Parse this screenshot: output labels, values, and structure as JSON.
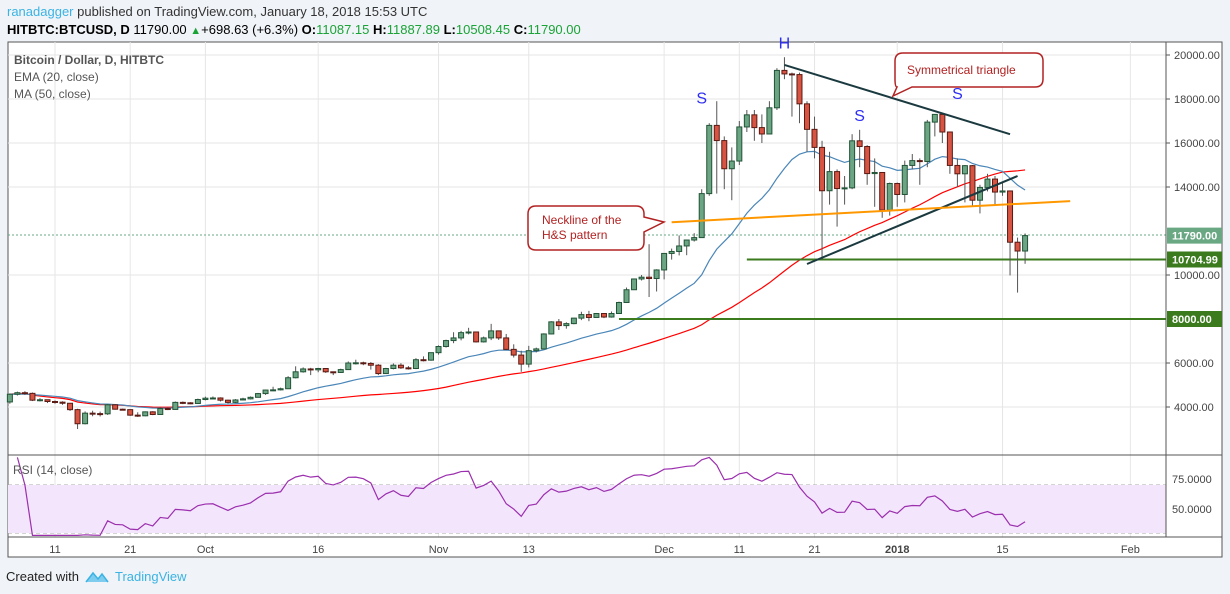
{
  "header": {
    "author": "ranadagger",
    "published_text": "published on TradingView.com, January 18, 2018 15:53 UTC",
    "symbol": "HITBTC:BTCUSD, D",
    "last": "11790.00",
    "change": "+698.63 (+6.3%)",
    "open_label": "O:",
    "open": "11087.15",
    "high_label": "H:",
    "high": "11887.89",
    "low_label": "L:",
    "low": "10508.45",
    "close_label": "C:",
    "close": "11790.00",
    "up_color": "#1aa337"
  },
  "legend": {
    "title": "Bitcoin / Dollar, D, HITBTC",
    "ema": "EMA (20, close)",
    "ma": "MA (50, close)"
  },
  "rsi": {
    "label": "RSI (14, close)",
    "ticks": [
      "75.0000",
      "50.0000"
    ],
    "band": [
      30,
      70
    ]
  },
  "footer": {
    "created_with": "Created with",
    "brand": "TradingView"
  },
  "chart_data": {
    "type": "candlestick",
    "interval": "D",
    "start_date": "2017-09-05",
    "first_open": 4230,
    "close": [
      4580,
      4650,
      4620,
      4310,
      4330,
      4250,
      4220,
      4170,
      3880,
      3240,
      3720,
      3700,
      3690,
      4100,
      3900,
      3880,
      3630,
      3600,
      3780,
      3660,
      3930,
      3890,
      4210,
      4190,
      4160,
      4340,
      4400,
      4410,
      4310,
      4210,
      4320,
      4370,
      4440,
      4610,
      4770,
      4780,
      4830,
      5330,
      5600,
      5730,
      5690,
      5750,
      5600,
      5570,
      5700,
      6000,
      6010,
      5980,
      5900,
      5520,
      5750,
      5900,
      5780,
      5750,
      6150,
      6130,
      6470,
      6750,
      7020,
      7140,
      7380,
      7410,
      6960,
      7140,
      7460,
      7140,
      6620,
      6360,
      5950,
      6560,
      6640,
      7320,
      7870,
      7700,
      7790,
      8040,
      8200,
      8070,
      8250,
      8090,
      8250,
      8750,
      9330,
      9820,
      9900,
      9840,
      10230,
      10980,
      11070,
      11320,
      11590,
      11700,
      13700,
      16800,
      16110,
      14830,
      15180,
      16730,
      17280,
      16700,
      16410,
      17600,
      19300,
      19140,
      19110,
      17780,
      16620,
      15800,
      13830,
      14700,
      13930,
      13960,
      16100,
      15840,
      14610,
      14660,
      12950,
      14160,
      13660,
      14980,
      15200,
      15160,
      16950,
      17300,
      16500,
      14980,
      14600,
      14970,
      13400,
      13980,
      14360,
      13770,
      13820,
      11490,
      11090,
      11790
    ],
    "high": [
      4620,
      4700,
      4720,
      4660,
      4400,
      4340,
      4300,
      4260,
      4180,
      3920,
      3800,
      3830,
      3790,
      4130,
      4130,
      3930,
      3890,
      3760,
      3800,
      3810,
      3980,
      3970,
      4250,
      4250,
      4220,
      4380,
      4470,
      4480,
      4440,
      4330,
      4360,
      4420,
      4480,
      4640,
      4790,
      4920,
      4880,
      5400,
      5850,
      5800,
      5780,
      5780,
      5770,
      5610,
      5740,
      6070,
      6150,
      6060,
      6040,
      5950,
      5780,
      5980,
      5990,
      5860,
      6220,
      6300,
      6470,
      6800,
      7060,
      7400,
      7460,
      7600,
      7430,
      7200,
      7780,
      7450,
      7320,
      6850,
      6560,
      6780,
      6700,
      7350,
      7900,
      8000,
      7850,
      8050,
      8330,
      8370,
      8260,
      8270,
      8340,
      8790,
      9430,
      9820,
      10000,
      11400,
      10260,
      10980,
      11200,
      11800,
      11600,
      11900,
      13900,
      16900,
      17900,
      16300,
      15800,
      17000,
      17500,
      17500,
      17300,
      17900,
      19400,
      19900,
      19200,
      19200,
      17900,
      17200,
      16100,
      15600,
      14800,
      14500,
      16400,
      16600,
      15900,
      15300,
      14680,
      14200,
      14200,
      15200,
      15500,
      15300,
      17050,
      17300,
      17200,
      16500,
      15300,
      15000,
      15000,
      14100,
      14600,
      14500,
      14200,
      13800,
      11700,
      11887.89
    ],
    "low": [
      4150,
      4520,
      4550,
      4270,
      4250,
      4180,
      4150,
      4100,
      3820,
      3000,
      3210,
      3580,
      3570,
      3640,
      3880,
      3850,
      3600,
      3550,
      3580,
      3630,
      3660,
      3860,
      3880,
      4130,
      4130,
      4150,
      4300,
      4370,
      4250,
      4160,
      4180,
      4300,
      4340,
      4440,
      4550,
      4720,
      4750,
      4830,
      5300,
      5560,
      5450,
      5580,
      5550,
      5450,
      5550,
      5700,
      5930,
      5900,
      5700,
      5450,
      5520,
      5710,
      5730,
      5700,
      5720,
      6070,
      6100,
      6380,
      6700,
      6900,
      7030,
      7300,
      6930,
      6930,
      7040,
      7050,
      6580,
      6250,
      5600,
      5800,
      6480,
      6630,
      7300,
      7500,
      7560,
      7760,
      7950,
      7900,
      8070,
      8040,
      8060,
      8250,
      8730,
      9320,
      9750,
      9000,
      9250,
      9800,
      10700,
      10890,
      10900,
      11520,
      11700,
      13600,
      13700,
      13900,
      13400,
      15000,
      16500,
      16100,
      16000,
      16400,
      17500,
      18900,
      17200,
      16900,
      15600,
      15300,
      10700,
      13200,
      12200,
      13200,
      13900,
      14900,
      14100,
      13100,
      12600,
      12700,
      13100,
      13300,
      14800,
      14100,
      14900,
      16300,
      16000,
      14600,
      14000,
      13300,
      13100,
      12800,
      13800,
      13200,
      13600,
      9980,
      9200,
      10508.45
    ],
    "indicators": [
      {
        "name": "EMA (20, close)",
        "color": "#4a86b8"
      },
      {
        "name": "MA (50, close)",
        "color": "#ff0000"
      }
    ],
    "price_ticks": [
      "20000.00",
      "18000.00",
      "16000.00",
      "14000.00",
      "10000.00",
      "6000.00",
      "4000.00"
    ],
    "ylim": [
      2300,
      20600
    ],
    "time_ticks": [
      {
        "label": "11",
        "date": "2017-09-11"
      },
      {
        "label": "21",
        "date": "2017-09-21"
      },
      {
        "label": "Oct",
        "date": "2017-10-01"
      },
      {
        "label": "16",
        "date": "2017-10-16"
      },
      {
        "label": "Nov",
        "date": "2017-11-01"
      },
      {
        "label": "13",
        "date": "2017-11-13"
      },
      {
        "label": "Dec",
        "date": "2017-12-01"
      },
      {
        "label": "11",
        "date": "2017-12-11"
      },
      {
        "label": "21",
        "date": "2017-12-21"
      },
      {
        "label": "2018",
        "date": "2018-01-01"
      },
      {
        "label": "15",
        "date": "2018-01-15"
      },
      {
        "label": "Feb",
        "date": "2018-02-01"
      }
    ],
    "price_tags": [
      {
        "label": "11790.00",
        "value": 11790,
        "color": "#6aa884"
      },
      {
        "label": "10704.99",
        "value": 10704.99,
        "color": "#3b7a1d"
      },
      {
        "label": "8000.00",
        "value": 8000,
        "color": "#3b7a1d"
      }
    ],
    "drawings": {
      "horizontal_lines": [
        {
          "value": 10704.99,
          "from": "2017-12-12",
          "color": "#3b7a1d"
        },
        {
          "value": 8000,
          "from": "2017-11-25",
          "color": "#3b7a1d"
        }
      ],
      "trend_lines": [
        {
          "name": "triangle-upper",
          "from": [
            "2017-12-17",
            19550
          ],
          "to": [
            "2018-01-16",
            16400
          ],
          "color": "#1b3a40"
        },
        {
          "name": "triangle-lower",
          "from": [
            "2017-12-20",
            10500
          ],
          "to": [
            "2018-01-17",
            14500
          ],
          "color": "#1b3a40"
        },
        {
          "name": "neckline",
          "from": [
            "2017-12-02",
            12400
          ],
          "to": [
            "2018-01-24",
            13360
          ],
          "color": "#ff9800"
        }
      ],
      "pattern_labels": [
        {
          "text": "H",
          "date": "2017-12-17",
          "value": 20300
        },
        {
          "text": "S",
          "date": "2017-12-06",
          "value": 17800
        },
        {
          "text": "S",
          "date": "2017-12-27",
          "value": 17000
        },
        {
          "text": "S",
          "date": "2018-01-09",
          "value": 18000
        }
      ],
      "callouts": [
        {
          "text": [
            "Neckline of the",
            "H&S pattern"
          ],
          "color": "#b22222"
        },
        {
          "text": [
            "Symmetrical triangle"
          ],
          "color": "#b22222"
        }
      ]
    }
  }
}
